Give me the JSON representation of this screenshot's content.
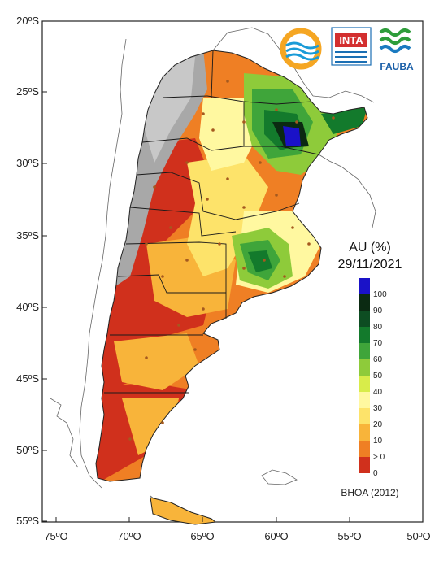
{
  "map": {
    "lat_ticks": [
      "20ºS",
      "25ºS",
      "30ºS",
      "35ºS",
      "40ºS",
      "45ºS",
      "50ºS",
      "55ºS"
    ],
    "lon_ticks": [
      "75ºO",
      "70ºO",
      "65ºO",
      "60ºO",
      "55ºO",
      "50ºO"
    ]
  },
  "logos": {
    "inta": "INTA",
    "fauba": "FAUBA"
  },
  "legend": {
    "title": "AU (%)",
    "date": "29/11/2021",
    "labels": [
      "100",
      "90",
      "80",
      "70",
      "60",
      "50",
      "40",
      "30",
      "20",
      "10",
      "> 0",
      "0"
    ],
    "colors": [
      "#1a12c8",
      "#0b2a12",
      "#0d4d22",
      "#137a2c",
      "#3fa53a",
      "#8ecb3a",
      "#d8ec4a",
      "#fff8a0",
      "#fde36a",
      "#f8b43a",
      "#ef7f24",
      "#d0301c"
    ],
    "credit": "BHOA (2012)"
  }
}
